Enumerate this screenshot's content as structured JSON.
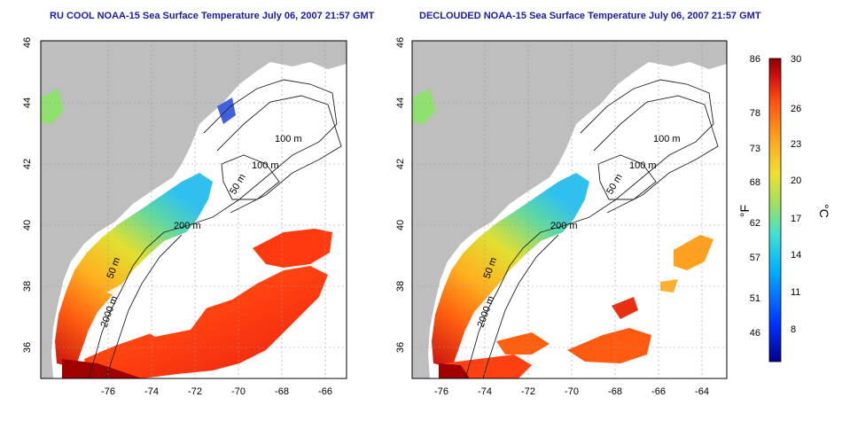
{
  "left_panel": {
    "title": "RU COOL NOAA-15 Sea Surface Temperature July 06, 2007 21:57 GMT"
  },
  "right_panel": {
    "title": "DECLOUDED NOAA-15 Sea Surface Temperature July 06, 2007 21:57 GMT"
  },
  "axes": {
    "lon_ticks": [
      "-76",
      "-74",
      "-72",
      "-70",
      "-68",
      "-66",
      "-64"
    ],
    "lat_ticks": [
      "36",
      "38",
      "40",
      "42",
      "44",
      "46"
    ]
  },
  "isobaths": {
    "left": [
      "100 m",
      "100 m",
      "50 m",
      "200 m",
      "50 m",
      "2000 m"
    ],
    "right": [
      "100 m",
      "100 m",
      "50 m",
      "200 m",
      "50 m",
      "2000 m"
    ]
  },
  "colorbar": {
    "f_ticks": [
      "86",
      "78",
      "73",
      "68",
      "62",
      "57",
      "51",
      "46"
    ],
    "c_ticks": [
      "30",
      "26",
      "23",
      "20",
      "17",
      "14",
      "11",
      "8"
    ],
    "f_unit": "°F",
    "c_unit": "°C",
    "colors": [
      "#00008a",
      "#0030ff",
      "#00b0ff",
      "#40e0d0",
      "#a0e060",
      "#f0e030",
      "#ffa020",
      "#ff5010",
      "#d01010",
      "#8a0000"
    ]
  }
}
